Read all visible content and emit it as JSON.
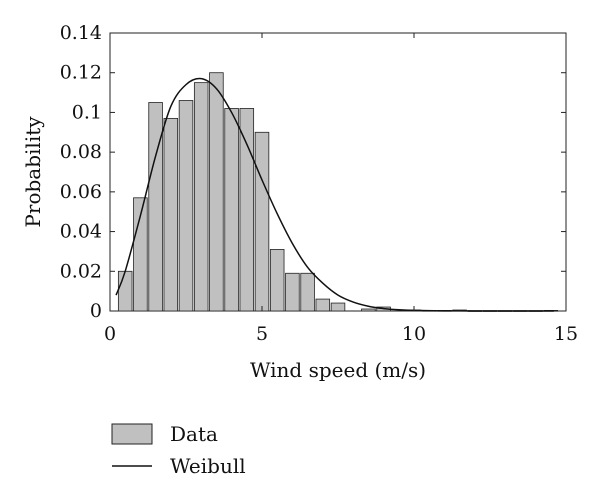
{
  "chart_data": {
    "type": "bar",
    "xlabel": "Wind speed (m/s)",
    "ylabel": "Probability",
    "xlim": [
      0,
      15
    ],
    "ylim": [
      0,
      0.14
    ],
    "x_ticks": [
      0,
      5,
      10,
      15
    ],
    "x_tick_labels": [
      "0",
      "5",
      "10",
      "15"
    ],
    "y_ticks": [
      0,
      0.02,
      0.04,
      0.06,
      0.08,
      0.1,
      0.12,
      0.14
    ],
    "y_tick_labels": [
      "0",
      "0.02",
      "0.04",
      "0.06",
      "0.08",
      "0.1",
      "0.12",
      "0.14"
    ],
    "grid": false,
    "legend_position": "bottom-left",
    "bar_color": "#c0c0c0",
    "bar_width": 0.45,
    "histogram": {
      "name": "Data",
      "bin_centers": [
        0.5,
        1.0,
        1.5,
        2.0,
        2.5,
        3.0,
        3.5,
        4.0,
        4.5,
        5.0,
        5.5,
        6.0,
        6.5,
        7.0,
        7.5,
        8.0,
        8.5,
        9.0,
        9.5,
        10.0,
        10.5,
        11.0,
        11.5,
        12.0,
        12.5,
        13.0,
        13.5,
        14.0,
        14.5
      ],
      "values": [
        0.02,
        0.057,
        0.105,
        0.097,
        0.106,
        0.115,
        0.12,
        0.102,
        0.102,
        0.09,
        0.031,
        0.019,
        0.019,
        0.006,
        0.004,
        0.0,
        0.001,
        0.002,
        0.0,
        0.0005,
        0.0003,
        0.0003,
        0.0005,
        0.0002,
        0.0002,
        0.0002,
        0.0002,
        0.0002,
        0.0003
      ]
    },
    "curve": {
      "name": "Weibull",
      "x": [
        0.2,
        0.5,
        1.0,
        1.5,
        2.0,
        2.5,
        3.0,
        3.5,
        4.0,
        4.5,
        5.0,
        5.5,
        6.0,
        6.5,
        7.0,
        7.5,
        8.0,
        8.5,
        9.0,
        9.5,
        10.0,
        11.0,
        12.0,
        13.0,
        14.0,
        14.6
      ],
      "y": [
        0.008,
        0.02,
        0.048,
        0.078,
        0.103,
        0.114,
        0.117,
        0.112,
        0.1,
        0.084,
        0.066,
        0.049,
        0.034,
        0.022,
        0.014,
        0.008,
        0.0045,
        0.0024,
        0.0012,
        0.0006,
        0.0003,
        8e-05,
        2e-05,
        0.0,
        0.0,
        0.0
      ]
    },
    "legend": [
      "Data",
      "Weibull"
    ]
  }
}
